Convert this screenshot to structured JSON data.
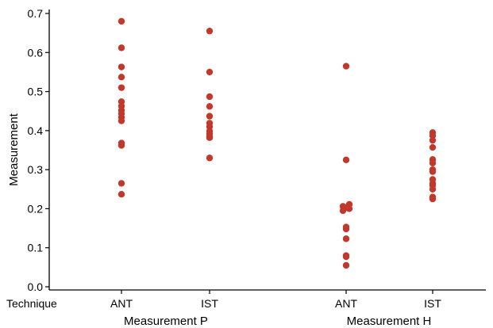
{
  "chart_data": {
    "type": "scatter",
    "title": "",
    "ylabel": "Measurement",
    "xlabel": "",
    "ylim": [
      0.0,
      0.7
    ],
    "yticks": [
      "0.0",
      "0.1",
      "0.2",
      "0.3",
      "0.4",
      "0.5",
      "0.6",
      "0.7"
    ],
    "grid": false,
    "legend": "none",
    "point_color": "#c0392b",
    "row_label": "Technique",
    "groups": [
      {
        "name": "Measurement P",
        "categories": [
          {
            "label": "ANT",
            "values": [
              0.68,
              0.612,
              0.563,
              0.537,
              0.51,
              0.474,
              0.463,
              0.452,
              0.443,
              0.434,
              0.425,
              0.368,
              0.362,
              0.265,
              0.237
            ]
          },
          {
            "label": "IST",
            "values": [
              0.655,
              0.55,
              0.487,
              0.462,
              0.437,
              0.419,
              0.41,
              0.399,
              0.392,
              0.385,
              0.382,
              0.33
            ]
          }
        ]
      },
      {
        "name": "Measurement H",
        "categories": [
          {
            "label": "ANT",
            "values": [
              0.565,
              0.325,
              0.211,
              0.206,
              0.203,
              0.2,
              0.195,
              0.153,
              0.148,
              0.123,
              0.08,
              0.077,
              0.055
            ]
          },
          {
            "label": "IST",
            "values": [
              0.395,
              0.387,
              0.375,
              0.357,
              0.326,
              0.317,
              0.3,
              0.295,
              0.275,
              0.265,
              0.26,
              0.25,
              0.23,
              0.225
            ]
          }
        ]
      }
    ]
  }
}
